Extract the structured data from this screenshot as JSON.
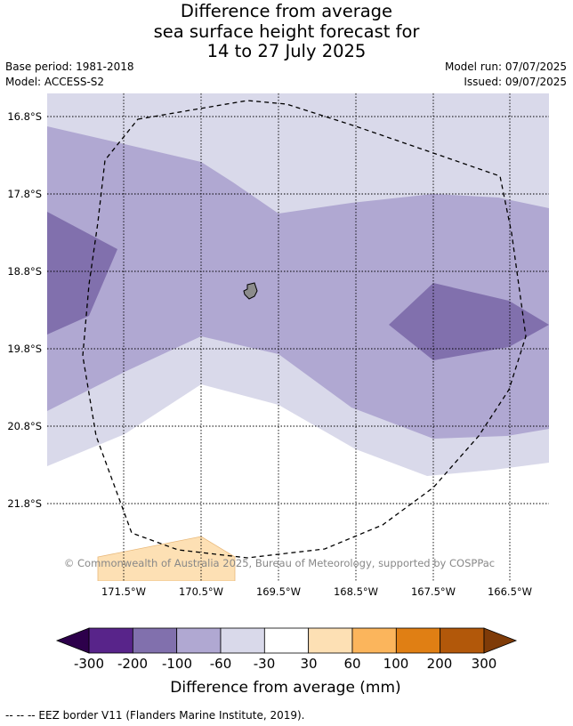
{
  "title": {
    "line1": "Difference from average",
    "line2": "sea surface height forecast for",
    "line3": "14 to 27 July 2025"
  },
  "meta": {
    "base_period": "Base period: 1981-2018",
    "model": "Model: ACCESS-S2",
    "model_run": "Model run: 07/07/2025",
    "issued": "Issued: 09/07/2025"
  },
  "map": {
    "lat_labels": [
      "16.8°S",
      "17.8°S",
      "18.8°S",
      "19.8°S",
      "20.8°S",
      "21.8°S"
    ],
    "lon_labels": [
      "171.5°W",
      "170.5°W",
      "169.5°W",
      "168.5°W",
      "167.5°W",
      "166.5°W"
    ],
    "copyright": "© Commonwealth of Australia 2025, Bureau of Meteorology, supported by COSPPac"
  },
  "colorbar": {
    "ticks": [
      "-300",
      "-200",
      "-100",
      "-60",
      "-30",
      "30",
      "60",
      "100",
      "200",
      "300"
    ],
    "colors": [
      "#58248a",
      "#8170ad",
      "#b0a8d2",
      "#d9d9ea",
      "#ffffff",
      "#fde0b4",
      "#fbb55c",
      "#e07f14",
      "#b2580a"
    ],
    "low_color": "#2d004b",
    "high_color": "#7f3b08",
    "title": "Difference from average (mm)"
  },
  "footer": {
    "legend": "--  --  -- EEZ border V11 (Flanders Marine Institute, 2019)."
  }
}
